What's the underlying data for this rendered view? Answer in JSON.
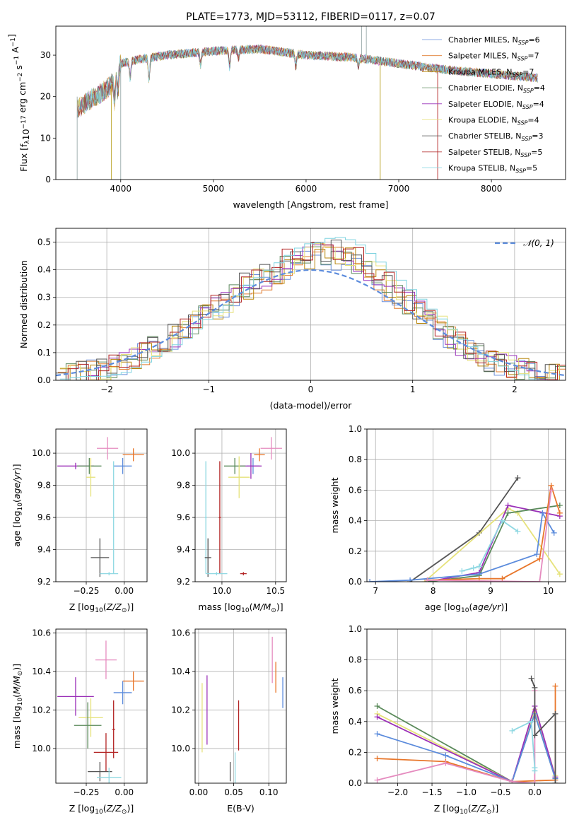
{
  "colors": {
    "spec": [
      "#6a8fdb",
      "#e07b2e",
      "#b8860b",
      "#5f8a5f",
      "#9933bb",
      "#e6e07a",
      "#555555",
      "#b22222",
      "#7fd3e0"
    ],
    "series": {
      "blue": "#5b8bdc",
      "orange": "#e8762a",
      "gray": "#555555",
      "green": "#5a8a5a",
      "purple": "#9b30b8",
      "yellow": "#e6e27a",
      "pink": "#e58bbf",
      "red": "#b22222",
      "cyan": "#8fd8e2",
      "olive": "#b5a822",
      "gold": "#c8b43a"
    }
  },
  "chart_data": [
    {
      "id": "spectrum",
      "type": "line",
      "title": "PLATE=1773, MJD=53112, FIBERID=0117, z=0.07",
      "xlabel": "wavelength [Angstrom, rest frame]",
      "ylabel": "Flux [f_λ10^-17 erg cm^-2 s^-1 A^-1]",
      "xlim": [
        3300,
        8800
      ],
      "ylim": [
        0,
        37
      ],
      "xticks": [
        4000,
        5000,
        6000,
        7000,
        8000
      ],
      "yticks": [
        0,
        10,
        20,
        30
      ],
      "legend_position": "top-right",
      "legend": [
        "Chabrier MILES, N_SSP=6",
        "Salpeter MILES, N_SSP=7",
        "Kroupa MILES, N_SSP=7",
        "Chabrier ELODIE, N_SSP=4",
        "Salpeter ELODIE, N_SSP=4",
        "Kroupa ELODIE, N_SSP=4",
        "Chabrier STELIB, N_SSP=3",
        "Salpeter STELIB, N_SSP=5",
        "Kroupa STELIB, N_SSP=5"
      ],
      "continuum": {
        "x": [
          3530,
          3650,
          3800,
          3900,
          4000,
          4200,
          4500,
          5000,
          5500,
          6000,
          6500,
          7000,
          7500,
          8000,
          8500
        ],
        "y": [
          17,
          19,
          21,
          23,
          28,
          29,
          30,
          31,
          31.5,
          30,
          29.5,
          28,
          26.5,
          25.5,
          24.5
        ]
      }
    },
    {
      "id": "residuals",
      "type": "histogram",
      "xlabel": "(data-model)/error",
      "ylabel": "Normed distribution",
      "xlim": [
        -2.5,
        2.5
      ],
      "ylim": [
        0,
        0.55
      ],
      "xticks": [
        -2,
        -1,
        0,
        1,
        2
      ],
      "yticks": [
        0.0,
        0.1,
        0.2,
        0.3,
        0.4,
        0.5
      ],
      "legend": [
        "N(0,1)"
      ],
      "legend_position": "top-right",
      "bin_width": 0.1,
      "x_start": -2.5,
      "values": [
        0.01,
        0.02,
        0.03,
        0.035,
        0.04,
        0.05,
        0.06,
        0.08,
        0.1,
        0.12,
        0.14,
        0.16,
        0.18,
        0.21,
        0.24,
        0.26,
        0.28,
        0.31,
        0.34,
        0.36,
        0.38,
        0.4,
        0.42,
        0.44,
        0.45,
        0.45,
        0.46,
        0.46,
        0.45,
        0.43,
        0.4,
        0.37,
        0.34,
        0.31,
        0.28,
        0.25,
        0.22,
        0.19,
        0.16,
        0.13,
        0.11,
        0.09,
        0.07,
        0.06,
        0.05,
        0.04,
        0.03,
        0.025,
        0.02,
        0.015
      ]
    },
    {
      "id": "age_vs_Z",
      "type": "errorbar",
      "xlabel": "Z [log10(Z/Z⊙)]",
      "ylabel": "age  [log10(age/yr)]",
      "xlim": [
        -0.45,
        0.15
      ],
      "ylim": [
        9.2,
        10.15
      ],
      "xticks": [
        -0.25,
        0.0
      ],
      "xticklabels": [
        "−0.25",
        "0.00"
      ],
      "yticks": [
        9.2,
        9.4,
        9.6,
        9.8,
        10.0
      ],
      "points": [
        {
          "c": "pink",
          "x": -0.11,
          "y": 10.03,
          "xe": 0.07,
          "ye": 0.07
        },
        {
          "c": "orange",
          "x": 0.06,
          "y": 9.99,
          "xe": 0.07,
          "ye": 0.04
        },
        {
          "c": "blue",
          "x": -0.01,
          "y": 9.92,
          "xe": 0.06,
          "ye": 0.05
        },
        {
          "c": "purple",
          "x": -0.32,
          "y": 9.92,
          "xe": 0.12,
          "ye": 0.02
        },
        {
          "c": "green",
          "x": -0.23,
          "y": 9.92,
          "xe": 0.08,
          "ye": 0.05
        },
        {
          "c": "yellow",
          "x": -0.22,
          "y": 9.85,
          "xe": 0.03,
          "ye": 0.12
        },
        {
          "c": "cyan",
          "x": -0.07,
          "y": 9.6,
          "xe": 0.01,
          "ye": 0.35
        },
        {
          "c": "gray",
          "x": -0.16,
          "y": 9.35,
          "xe": 0.06,
          "ye": 0.12
        },
        {
          "c": "cyan",
          "x": -0.1,
          "y": 9.25,
          "xe": 0.06,
          "ye": 0.01
        }
      ]
    },
    {
      "id": "age_vs_mass",
      "type": "errorbar",
      "xlabel": "mass [log10(M/M⊙)]",
      "ylabel": "",
      "xlim": [
        9.75,
        10.6
      ],
      "ylim": [
        9.2,
        10.15
      ],
      "xticks": [
        10.0,
        10.5
      ],
      "xticklabels": [
        "10.0",
        "10.5"
      ],
      "yticks": [
        9.2,
        9.4,
        9.6,
        9.8,
        10.0
      ],
      "points": [
        {
          "c": "pink",
          "x": 10.46,
          "y": 10.03,
          "xe": 0.1,
          "ye": 0.07
        },
        {
          "c": "orange",
          "x": 10.35,
          "y": 9.99,
          "xe": 0.05,
          "ye": 0.04
        },
        {
          "c": "blue",
          "x": 10.29,
          "y": 9.92,
          "xe": 0.06,
          "ye": 0.05
        },
        {
          "c": "purple",
          "x": 10.27,
          "y": 9.92,
          "xe": 0.1,
          "ye": 0.08
        },
        {
          "c": "green",
          "x": 10.12,
          "y": 9.92,
          "xe": 0.1,
          "ye": 0.05
        },
        {
          "c": "yellow",
          "x": 10.16,
          "y": 9.85,
          "xe": 0.1,
          "ye": 0.13
        },
        {
          "c": "cyan",
          "x": 9.85,
          "y": 9.6,
          "xe": 0.01,
          "ye": 0.35
        },
        {
          "c": "gray",
          "x": 9.87,
          "y": 9.35,
          "xe": 0.03,
          "ye": 0.12
        },
        {
          "c": "red",
          "x": 9.98,
          "y": 9.6,
          "xe": 0.01,
          "ye": 0.35
        },
        {
          "c": "red",
          "x": 10.2,
          "y": 9.25,
          "xe": 0.03,
          "ye": 0.01
        },
        {
          "c": "cyan",
          "x": 9.95,
          "y": 9.25,
          "xe": 0.1,
          "ye": 0.01
        }
      ]
    },
    {
      "id": "mass_weight_vs_age",
      "type": "line",
      "xlabel": "age  [log10(age/yr)]",
      "ylabel": "mass weight",
      "xlim": [
        6.85,
        10.3
      ],
      "ylim": [
        0,
        1.0
      ],
      "xticks": [
        7,
        8,
        9,
        10
      ],
      "yticks": [
        0.0,
        0.2,
        0.4,
        0.6,
        0.8,
        1.0
      ],
      "series": [
        {
          "c": "gray",
          "x": [
            7.6,
            8.8,
            9.47
          ],
          "y": [
            0.0,
            0.32,
            0.68
          ]
        },
        {
          "c": "yellow",
          "x": [
            7.85,
            9.3,
            9.47,
            10.2
          ],
          "y": [
            0.0,
            0.48,
            0.45,
            0.05
          ]
        },
        {
          "c": "purple",
          "x": [
            7.9,
            8.8,
            9.3,
            10.2
          ],
          "y": [
            0.0,
            0.06,
            0.5,
            0.43
          ]
        },
        {
          "c": "green",
          "x": [
            7.9,
            8.8,
            9.3,
            10.2
          ],
          "y": [
            0.0,
            0.04,
            0.45,
            0.5
          ]
        },
        {
          "c": "cyan",
          "x": [
            8.5,
            8.7,
            8.8,
            9.2,
            9.47
          ],
          "y": [
            0.07,
            0.09,
            0.1,
            0.4,
            0.33
          ]
        },
        {
          "c": "blue",
          "x": [
            6.9,
            7.6,
            8.8,
            9.8,
            9.9,
            10.1
          ],
          "y": [
            0.0,
            0.01,
            0.05,
            0.18,
            0.45,
            0.32
          ]
        },
        {
          "c": "orange",
          "x": [
            7.9,
            8.8,
            9.2,
            9.85,
            10.05,
            10.2
          ],
          "y": [
            0.01,
            0.02,
            0.02,
            0.15,
            0.63,
            0.45
          ]
        },
        {
          "c": "pink",
          "x": [
            7.9,
            9.85,
            10.05
          ],
          "y": [
            0.01,
            0.0,
            0.6
          ]
        }
      ]
    },
    {
      "id": "mass_vs_Z",
      "type": "errorbar",
      "xlabel": "Z [log10(Z/Z⊙)]",
      "ylabel": "mass [log10(M/M⊙)]",
      "xlim": [
        -0.45,
        0.15
      ],
      "ylim": [
        9.82,
        10.62
      ],
      "xticks": [
        -0.25,
        0.0
      ],
      "xticklabels": [
        "−0.25",
        "0.00"
      ],
      "yticks": [
        10.0,
        10.2,
        10.4,
        10.6
      ],
      "points": [
        {
          "c": "pink",
          "x": -0.12,
          "y": 10.46,
          "xe": 0.07,
          "ye": 0.1
        },
        {
          "c": "orange",
          "x": 0.06,
          "y": 10.35,
          "xe": 0.07,
          "ye": 0.05
        },
        {
          "c": "blue",
          "x": -0.01,
          "y": 10.29,
          "xe": 0.06,
          "ye": 0.06
        },
        {
          "c": "purple",
          "x": -0.32,
          "y": 10.27,
          "xe": 0.12,
          "ye": 0.1
        },
        {
          "c": "yellow",
          "x": -0.22,
          "y": 10.16,
          "xe": 0.08,
          "ye": 0.1
        },
        {
          "c": "green",
          "x": -0.24,
          "y": 10.12,
          "xe": 0.09,
          "ye": 0.12
        },
        {
          "c": "red",
          "x": -0.07,
          "y": 10.1,
          "xe": 0.01,
          "ye": 0.15
        },
        {
          "c": "red",
          "x": -0.12,
          "y": 9.98,
          "xe": 0.08,
          "ye": 0.1
        },
        {
          "c": "gray",
          "x": -0.16,
          "y": 9.88,
          "xe": 0.08,
          "ye": 0.05
        },
        {
          "c": "cyan",
          "x": -0.1,
          "y": 9.85,
          "xe": 0.08,
          "ye": 0.05
        }
      ]
    },
    {
      "id": "mass_vs_EBV",
      "type": "errorbar",
      "xlabel": "E(B-V)",
      "ylabel": "",
      "xlim": [
        -0.005,
        0.125
      ],
      "ylim": [
        9.82,
        10.62
      ],
      "xticks": [
        0.0,
        0.05,
        0.1
      ],
      "xticklabels": [
        "0.00",
        "0.05",
        "0.10"
      ],
      "yticks": [
        10.0,
        10.2,
        10.4,
        10.6
      ],
      "points": [
        {
          "c": "yellow",
          "x": 0.005,
          "y": 10.16,
          "xe": 0.0,
          "ye": 0.18
        },
        {
          "c": "purple",
          "x": 0.012,
          "y": 10.2,
          "xe": 0.0,
          "ye": 0.18
        },
        {
          "c": "gray",
          "x": 0.045,
          "y": 9.88,
          "xe": 0.0,
          "ye": 0.05
        },
        {
          "c": "cyan",
          "x": 0.052,
          "y": 9.88,
          "xe": 0.0,
          "ye": 0.1
        },
        {
          "c": "red",
          "x": 0.057,
          "y": 10.12,
          "xe": 0.0,
          "ye": 0.13
        },
        {
          "c": "pink",
          "x": 0.105,
          "y": 10.46,
          "xe": 0.0,
          "ye": 0.12
        },
        {
          "c": "orange",
          "x": 0.11,
          "y": 10.37,
          "xe": 0.0,
          "ye": 0.08
        },
        {
          "c": "blue",
          "x": 0.12,
          "y": 10.29,
          "xe": 0.0,
          "ye": 0.08
        }
      ]
    },
    {
      "id": "mass_weight_vs_Z",
      "type": "line",
      "xlabel": "Z [log10(Z/Z⊙)]",
      "ylabel": "mass weight",
      "xlim": [
        -2.45,
        0.45
      ],
      "ylim": [
        0,
        1.0
      ],
      "xticks": [
        -2.0,
        -1.5,
        -1.0,
        -0.5,
        0.0
      ],
      "xticklabels": [
        "−2.0",
        "−1.5",
        "−1.0",
        "−0.5",
        "0.0"
      ],
      "yticks": [
        0.0,
        0.2,
        0.4,
        0.6,
        0.8,
        1.0
      ],
      "series": [
        {
          "c": "green",
          "x": [
            -2.3,
            -0.33,
            0.0,
            0.3
          ],
          "y": [
            0.5,
            0.01,
            0.45,
            0.03
          ]
        },
        {
          "c": "yellow",
          "x": [
            -2.3,
            -0.33,
            0.0,
            0.3
          ],
          "y": [
            0.45,
            0.01,
            0.48,
            0.05
          ]
        },
        {
          "c": "purple",
          "x": [
            -2.3,
            -0.33,
            0.0,
            0.3
          ],
          "y": [
            0.43,
            0.01,
            0.5,
            0.04
          ]
        },
        {
          "c": "blue",
          "x": [
            -2.3,
            -1.3,
            -0.33,
            0.0,
            0.3
          ],
          "y": [
            0.32,
            0.18,
            0.01,
            0.45,
            0.03
          ]
        },
        {
          "c": "orange",
          "x": [
            -2.3,
            -1.3,
            -0.33,
            0.3,
            0.3
          ],
          "y": [
            0.16,
            0.14,
            0.01,
            0.02,
            0.63
          ]
        },
        {
          "c": "pink",
          "x": [
            -2.3,
            -1.3,
            -0.33,
            0.0,
            0.0
          ],
          "y": [
            0.02,
            0.13,
            0.01,
            0.0,
            0.6
          ]
        },
        {
          "c": "gray",
          "x": [
            -0.05,
            0.0,
            0.0,
            0.3,
            0.3
          ],
          "y": [
            0.68,
            0.62,
            0.31,
            0.45,
            0.0
          ]
        },
        {
          "c": "cyan",
          "x": [
            -0.33,
            -0.05,
            0.0,
            0.0
          ],
          "y": [
            0.34,
            0.4,
            0.1,
            0.08
          ]
        }
      ]
    }
  ]
}
